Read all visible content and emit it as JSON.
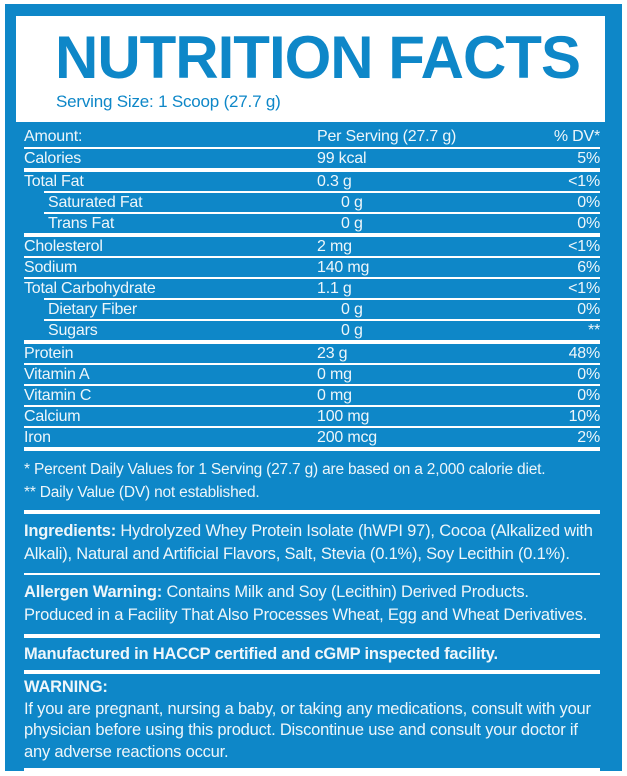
{
  "colors": {
    "label_blue": "#0e87c8",
    "text_white": "#ffffff"
  },
  "header": {
    "title": "NUTRITION FACTS",
    "serving_size": "Serving Size: 1 Scoop (27.7 g)"
  },
  "table": {
    "columns": {
      "amount": "Amount:",
      "per_serving": "Per Serving (27.7 g)",
      "dv": "% DV*"
    },
    "rows": [
      {
        "label": "Calories",
        "amount": "99 kcal",
        "dv": "5%",
        "indent": false,
        "sep_above": "thin"
      },
      {
        "label": "Total Fat",
        "amount": "0.3 g",
        "dv": "<1%",
        "indent": false,
        "sep_above": "thick"
      },
      {
        "label": "Saturated Fat",
        "amount": "0 g",
        "dv": "0%",
        "indent": true,
        "sep_above": "thin-indent"
      },
      {
        "label": "Trans Fat",
        "amount": "0 g",
        "dv": "0%",
        "indent": true,
        "sep_above": "thin-indent"
      },
      {
        "label": "Cholesterol",
        "amount": "2 mg",
        "dv": "<1%",
        "indent": false,
        "sep_above": "thick"
      },
      {
        "label": "Sodium",
        "amount": "140 mg",
        "dv": "6%",
        "indent": false,
        "sep_above": "thin"
      },
      {
        "label": "Total Carbohydrate",
        "amount": "1.1 g",
        "dv": "<1%",
        "indent": false,
        "sep_above": "thin"
      },
      {
        "label": "Dietary Fiber",
        "amount": "0 g",
        "dv": "0%",
        "indent": true,
        "sep_above": "thin-indent"
      },
      {
        "label": "Sugars",
        "amount": "0 g",
        "dv": "**",
        "indent": true,
        "sep_above": "thin-indent"
      },
      {
        "label": "Protein",
        "amount": "23 g",
        "dv": "48%",
        "indent": false,
        "sep_above": "thick"
      },
      {
        "label": "Vitamin A",
        "amount": "0 mg",
        "dv": "0%",
        "indent": false,
        "sep_above": "thin"
      },
      {
        "label": "Vitamin C",
        "amount": "0 mg",
        "dv": "0%",
        "indent": false,
        "sep_above": "thin"
      },
      {
        "label": "Calcium",
        "amount": "100 mg",
        "dv": "10%",
        "indent": false,
        "sep_above": "thin"
      },
      {
        "label": "Iron",
        "amount": "200 mcg",
        "dv": "2%",
        "indent": false,
        "sep_above": "thin"
      }
    ]
  },
  "footnotes": [
    "* Percent Daily Values for 1 Serving (27.7 g) are based on a 2,000 calorie diet.",
    "** Daily Value (DV) not established."
  ],
  "sections": {
    "ingredients": {
      "label": "Ingredients:",
      "text": "Hydrolyzed Whey Protein Isolate (hWPI 97), Cocoa (Alkalized with Alkali), Natural and Artificial Flavors, Salt, Stevia (0.1%), Soy Lecithin (0.1%)."
    },
    "allergen": {
      "label": "Allergen Warning:",
      "text": "Contains Milk and Soy (Lecithin) Derived Products. Produced in a Facility That Also Processes Wheat, Egg and Wheat Derivatives."
    },
    "manufactured": "Manufactured in HACCP certified and cGMP inspected facility.",
    "warning": {
      "label": "WARNING:",
      "text": "If you are pregnant, nursing a baby, or taking any medications, consult with your physician before using this product. Discontinue use and consult your doctor if any adverse reactions occur."
    }
  }
}
